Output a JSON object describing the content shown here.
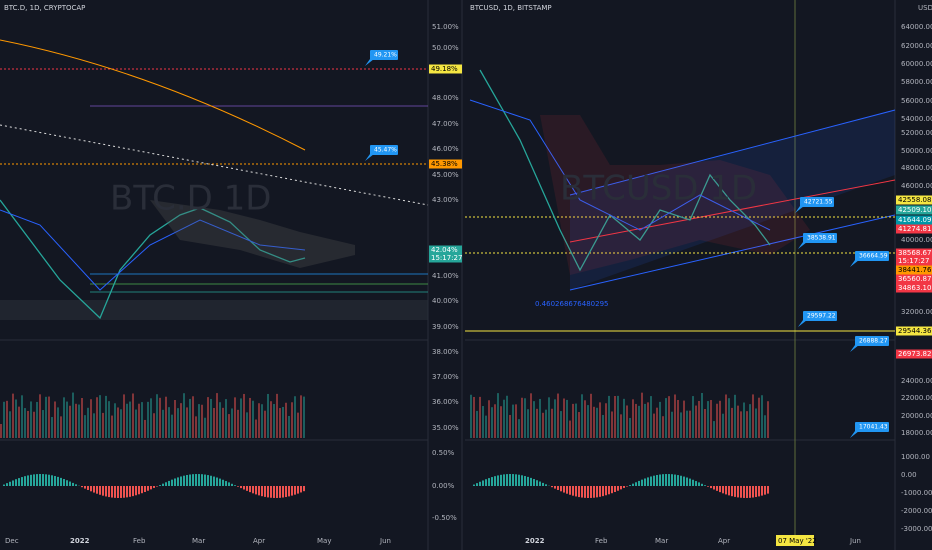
{
  "left": {
    "header": "BTC.D, 1D, CRYPTOCAP",
    "watermark": "BTC.D  1D",
    "y_axis": [
      "51.00%",
      "50.00%",
      "48.00%",
      "47.00%",
      "46.00%",
      "45.00%",
      "43.00%",
      "41.00%",
      "40.00%",
      "39.00%",
      "38.00%",
      "37.00%",
      "36.00%",
      "35.00%",
      "0.50%",
      "0.00%",
      "-0.50%"
    ],
    "price_tags": [
      "49.18%",
      "45.38%",
      "42.04%",
      "15:17:27"
    ],
    "callouts": [
      "49.21%",
      "45.47%"
    ],
    "time_axis": [
      "Dec",
      "2022",
      "Feb",
      "Mar",
      "Apr",
      "May",
      "Jun"
    ]
  },
  "right": {
    "header": "BTCUSD, 1D, BITSTAMP",
    "currency": "USD",
    "watermark": "BTCUSD  1D",
    "y_axis": [
      "64000.00",
      "62000.00",
      "60000.00",
      "58000.00",
      "56000.00",
      "54000.00",
      "52000.00",
      "50000.00",
      "48000.00",
      "46000.00",
      "40000.00",
      "32000.00",
      "24000.00",
      "22000.00",
      "20000.00",
      "18000.00",
      "1000.00",
      "0.00",
      "-1000.00",
      "-2000.00",
      "-3000.00"
    ],
    "price_tags": [
      "42558.08",
      "42509.10",
      "41644.09",
      "41274.81",
      "38568.67",
      "15:17:27",
      "38441.76",
      "36560.87",
      "34863.10",
      "29544.36",
      "26973.82"
    ],
    "callouts": [
      "42721.55",
      "38538.91",
      "36664.59",
      "29597.22",
      "26888.27",
      "17041.43"
    ],
    "fib_label": "0.460268676480295",
    "time_axis": [
      "2022",
      "Feb",
      "Mar",
      "Apr",
      "07 May '22",
      "Jun"
    ]
  }
}
